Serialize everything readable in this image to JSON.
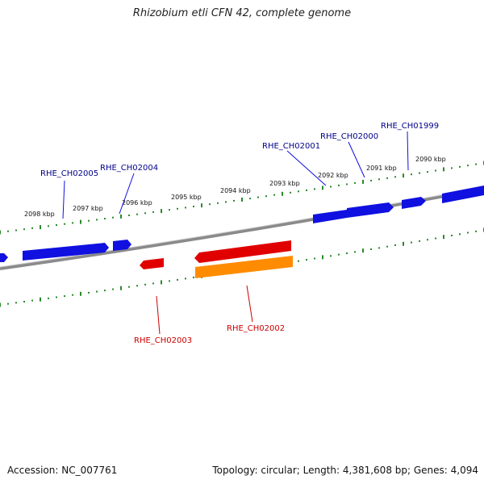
{
  "title": "Rhizobium etli CFN 42, complete genome",
  "footer": {
    "accession": "Accession: NC_007761",
    "summary": "Topology: circular; Length: 4,381,608 bp; Genes: 4,094"
  },
  "colors": {
    "forward_gene": "#1010e0",
    "reverse_gene": "#e00000",
    "reverse_gene_alt": "#ff8c00",
    "backbone": "#8a8a8a",
    "ticks": "#2a8a2a",
    "label_forward": "#00008b",
    "label_reverse": "#cc0000"
  },
  "scale_labels": [
    "2098 kbp",
    "2097 kbp",
    "2096 kbp",
    "2095 kbp",
    "2094 kbp",
    "2093 kbp",
    "2092 kbp",
    "2091 kbp",
    "2090 kbp"
  ],
  "genes_forward": [
    "RHE_CH02005",
    "RHE_CH02004",
    "RHE_CH02001",
    "RHE_CH02000",
    "RHE_CH01999"
  ],
  "genes_reverse": [
    "RHE_CH02003",
    "RHE_CH02002"
  ]
}
